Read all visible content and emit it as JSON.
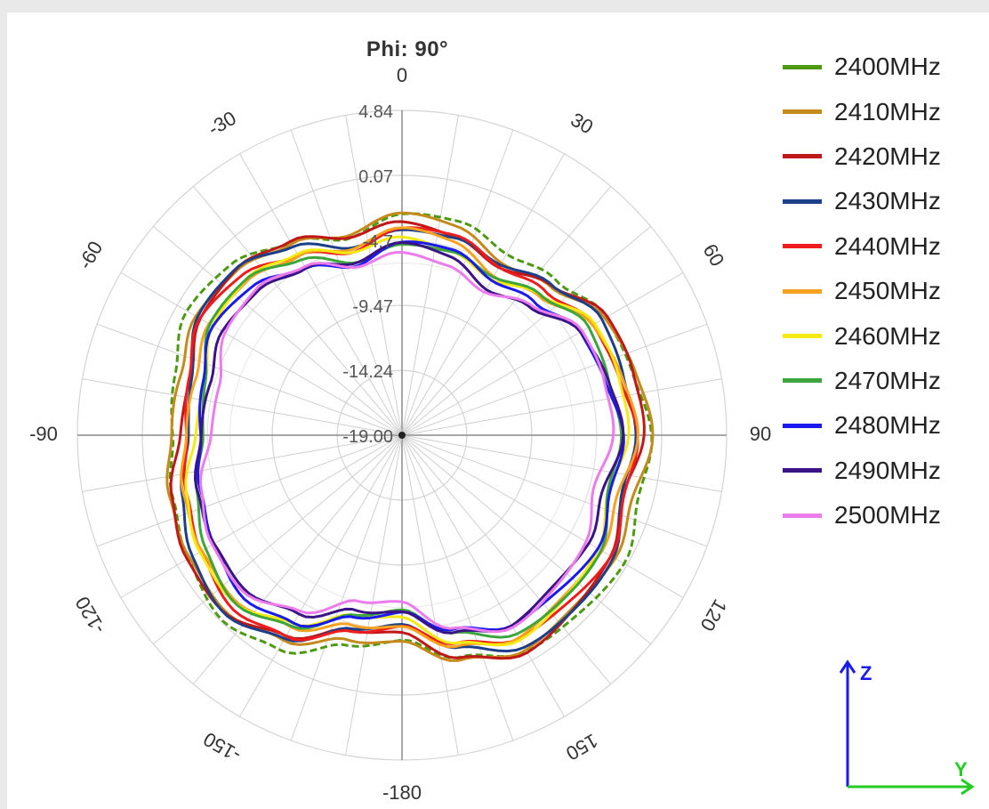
{
  "chart_data": {
    "type": "polar-line",
    "title": "Phi: 90°",
    "angle_ticks": [
      0,
      30,
      60,
      90,
      120,
      150,
      -180,
      -150,
      -120,
      -90,
      -60,
      -30
    ],
    "radial_ticks": [
      4.84,
      0.07,
      -4.71,
      -9.47,
      -14.24,
      -19.0
    ],
    "radial_labels": [
      "4.84",
      "0.07",
      "-4.7",
      "-9.47",
      "-14.24",
      "-19.00"
    ],
    "rlim": [
      -19.0,
      4.84
    ],
    "series": [
      {
        "name": "2400MHz",
        "color": "#4d9a12",
        "dash": "8,4",
        "r_base": 1.6
      },
      {
        "name": "2410MHz",
        "color": "#c58a1c",
        "dash": "",
        "r_base": 1.3
      },
      {
        "name": "2420MHz",
        "color": "#c01818",
        "dash": "",
        "r_base": 1.0
      },
      {
        "name": "2430MHz",
        "color": "#1c3f8a",
        "dash": "",
        "r_base": 0.7
      },
      {
        "name": "2440MHz",
        "color": "#ee1c1c",
        "dash": "",
        "r_base": 0.4
      },
      {
        "name": "2450MHz",
        "color": "#f7a21f",
        "dash": "",
        "r_base": 0.1
      },
      {
        "name": "2460MHz",
        "color": "#f4ea12",
        "dash": "",
        "r_base": -0.2
      },
      {
        "name": "2470MHz",
        "color": "#3ca53c",
        "dash": "",
        "r_base": -0.5
      },
      {
        "name": "2480MHz",
        "color": "#1a1aee",
        "dash": "",
        "r_base": -0.8
      },
      {
        "name": "2490MHz",
        "color": "#3a1486",
        "dash": "",
        "r_base": -1.1
      },
      {
        "name": "2500MHz",
        "color": "#ec7cec",
        "dash": "",
        "r_base": -1.4
      }
    ],
    "pattern_dB": {
      "theta": [
        0,
        15,
        30,
        45,
        60,
        75,
        90,
        105,
        120,
        135,
        150,
        165,
        180,
        -165,
        -150,
        -135,
        -120,
        -105,
        -90,
        -75,
        -60,
        -45,
        -30,
        -15
      ],
      "gain": [
        -4.2,
        -4.5,
        -5.4,
        -4.4,
        -2.8,
        -2.6,
        -2.1,
        -2.8,
        -1.9,
        -2.0,
        -1.8,
        -3.3,
        -5.4,
        -4.8,
        -2.6,
        -1.5,
        -2.0,
        -2.7,
        -3.6,
        -3.5,
        -2.5,
        -2.7,
        -3.8,
        -5.2
      ]
    }
  },
  "axes_indicator": {
    "z_label": "Z",
    "y_label": "Y",
    "z_color": "#1a1aee",
    "y_color": "#22cc22"
  }
}
